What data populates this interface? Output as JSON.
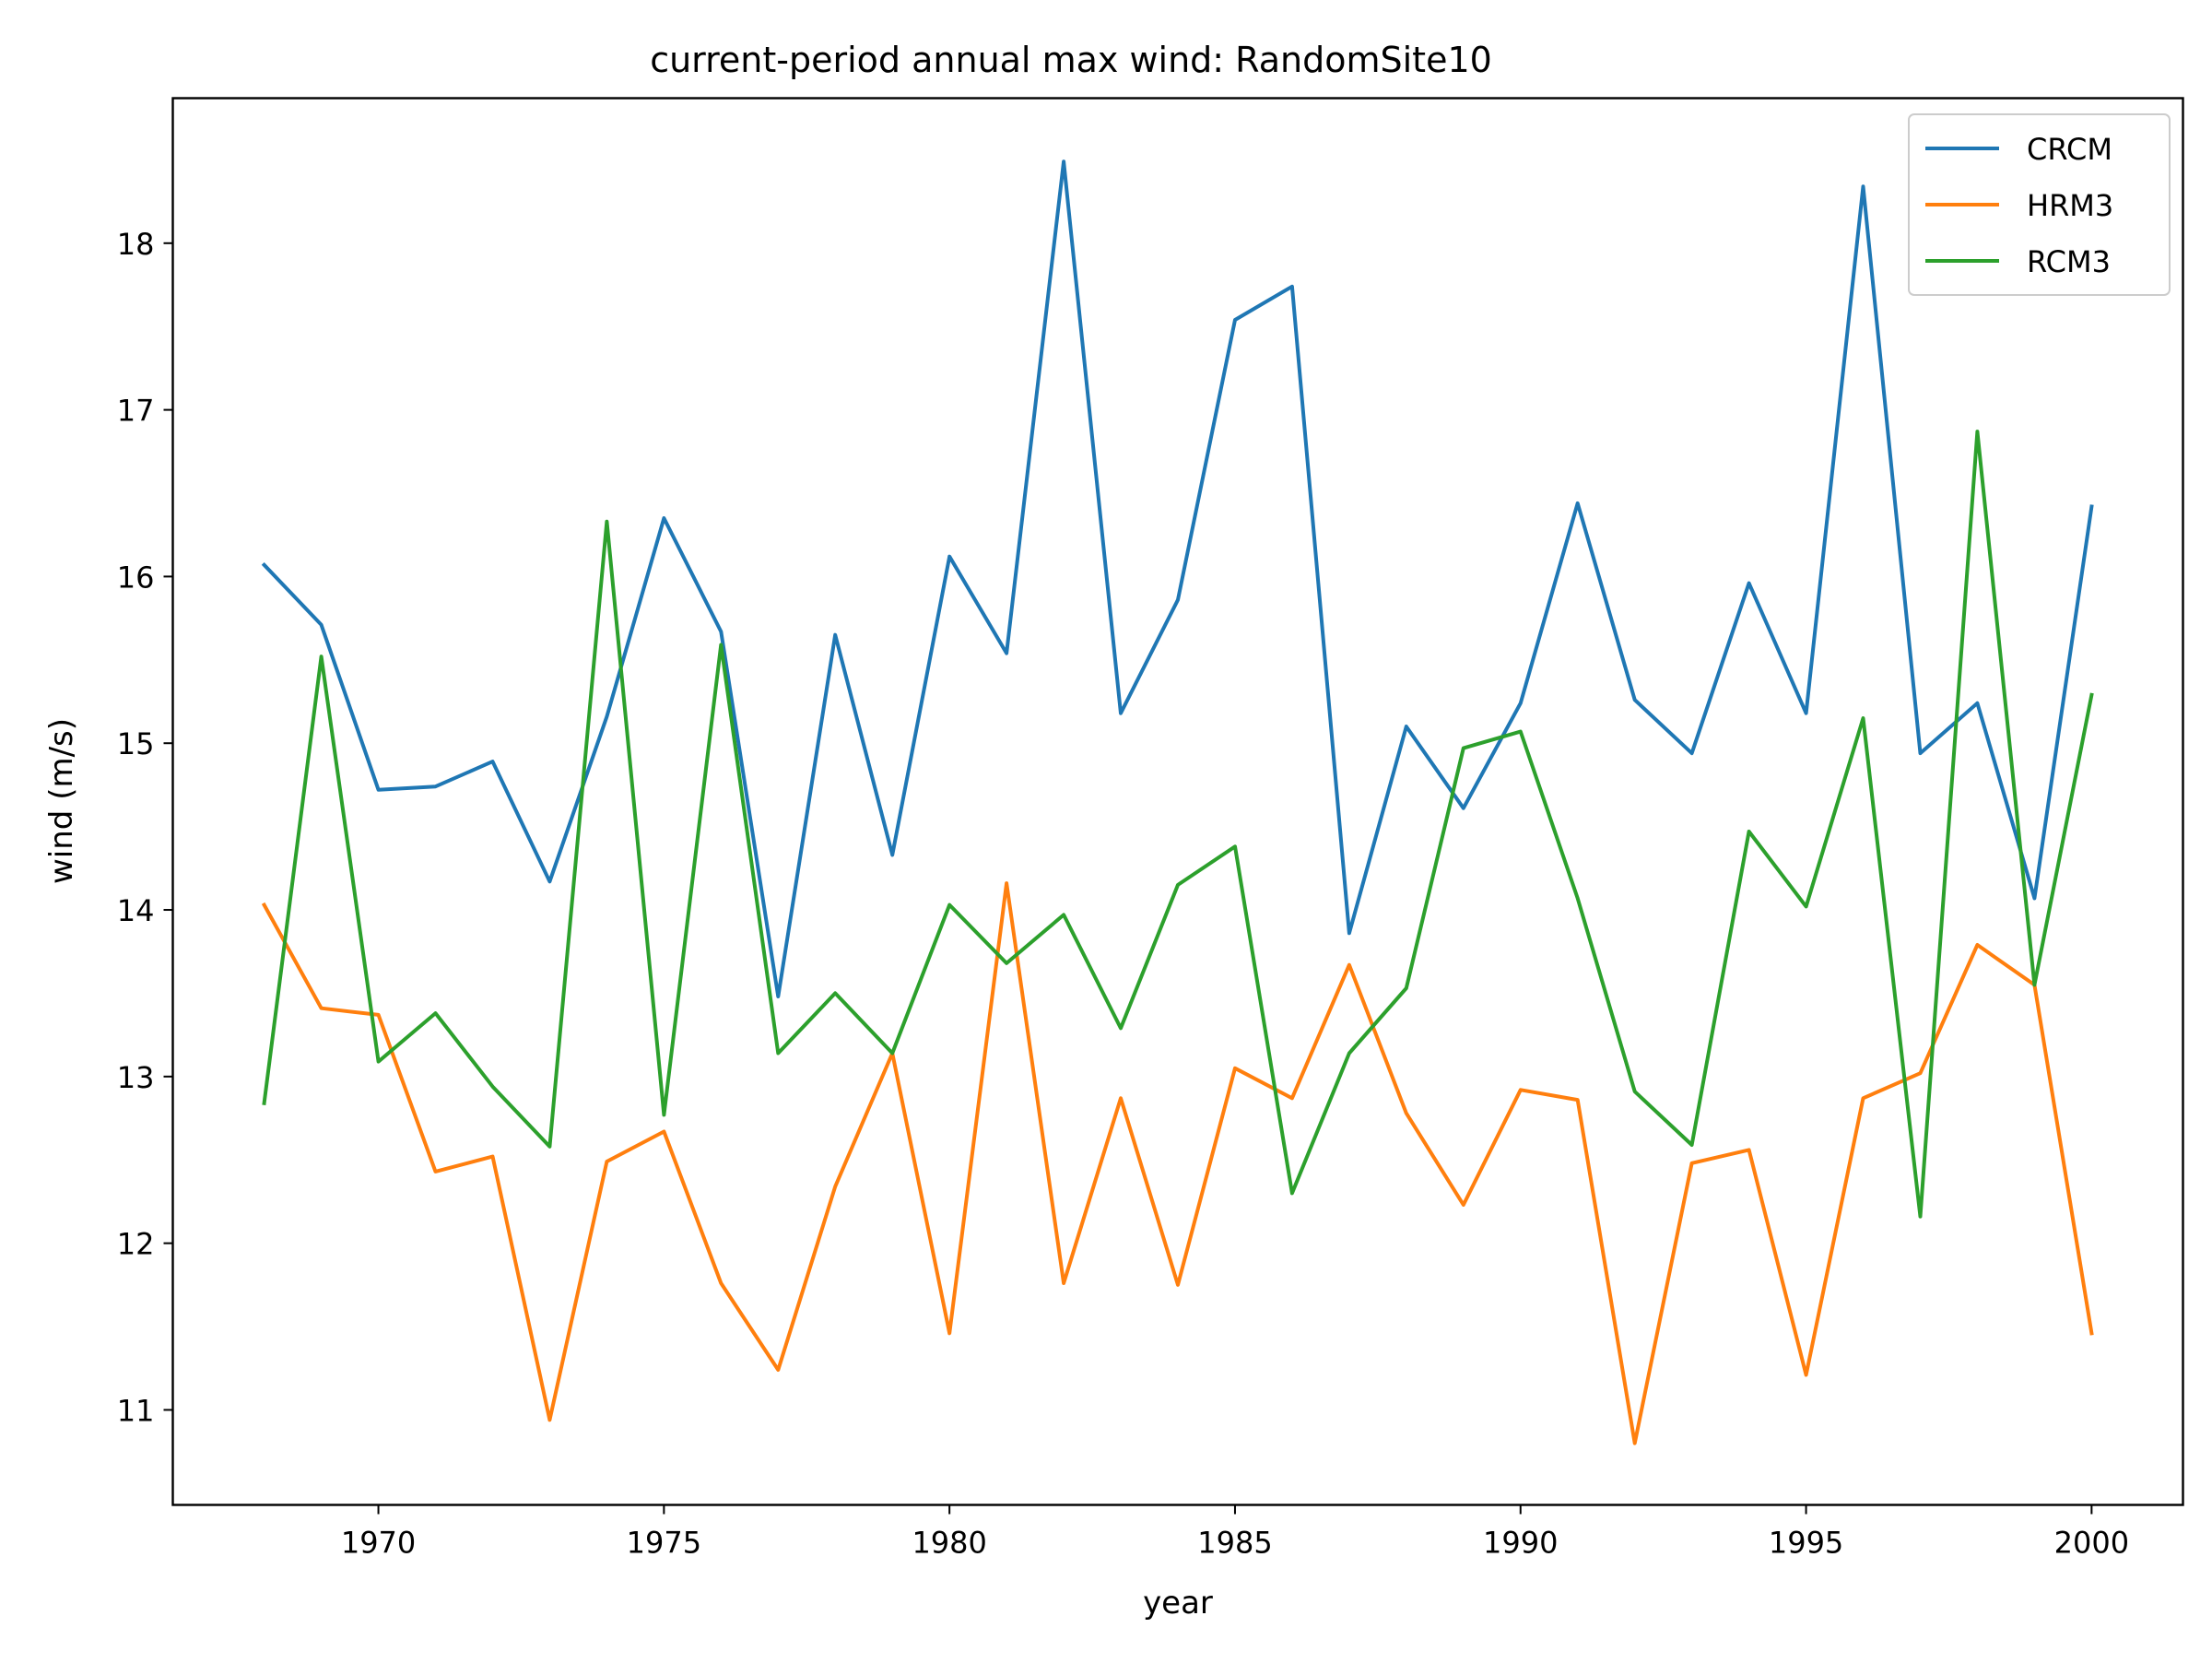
{
  "chart_data": {
    "type": "line",
    "title": "current-period annual max wind: RandomSite10",
    "xlabel": "year",
    "ylabel": "wind (m/s)",
    "x": [
      1968,
      1969,
      1970,
      1971,
      1972,
      1973,
      1974,
      1975,
      1976,
      1977,
      1978,
      1979,
      1980,
      1981,
      1982,
      1983,
      1984,
      1985,
      1986,
      1987,
      1988,
      1989,
      1990,
      1991,
      1992,
      1993,
      1994,
      1995,
      1996,
      1997,
      1998,
      1999,
      2000
    ],
    "xlim": [
      1966.4,
      2001.6
    ],
    "ylim": [
      10.43,
      18.87
    ],
    "xticks": [
      1970,
      1975,
      1980,
      1985,
      1990,
      1995,
      2000
    ],
    "yticks": [
      11,
      12,
      13,
      14,
      15,
      16,
      17,
      18
    ],
    "grid": false,
    "legend_position": "upper right",
    "series": [
      {
        "name": "CRCM",
        "color": "#1f77b4",
        "values": [
          16.07,
          15.71,
          14.72,
          14.74,
          14.89,
          14.17,
          15.16,
          16.35,
          15.67,
          13.48,
          15.65,
          14.33,
          16.12,
          15.54,
          18.49,
          15.18,
          15.86,
          17.54,
          17.74,
          13.86,
          15.1,
          14.61,
          15.24,
          16.44,
          15.26,
          14.94,
          15.96,
          15.18,
          18.34,
          14.94,
          15.24,
          14.07,
          16.42
        ]
      },
      {
        "name": "HRM3",
        "color": "#ff7f0e",
        "values": [
          14.03,
          13.41,
          13.37,
          12.43,
          12.52,
          10.94,
          12.49,
          12.67,
          11.76,
          11.24,
          12.34,
          13.14,
          11.46,
          14.16,
          11.76,
          12.87,
          11.75,
          13.05,
          12.87,
          13.67,
          12.78,
          12.23,
          12.92,
          12.86,
          10.8,
          12.48,
          12.56,
          11.21,
          12.87,
          13.02,
          13.79,
          13.55,
          11.46
        ]
      },
      {
        "name": "RCM3",
        "color": "#2ca02c",
        "values": [
          12.84,
          15.52,
          13.09,
          13.38,
          12.94,
          12.58,
          16.33,
          12.77,
          15.59,
          13.14,
          13.5,
          13.14,
          14.03,
          13.68,
          13.97,
          13.29,
          14.15,
          14.38,
          12.3,
          13.14,
          13.53,
          14.97,
          15.07,
          14.07,
          12.91,
          12.59,
          14.47,
          14.02,
          15.15,
          12.16,
          16.87,
          13.55,
          15.29
        ]
      }
    ]
  }
}
